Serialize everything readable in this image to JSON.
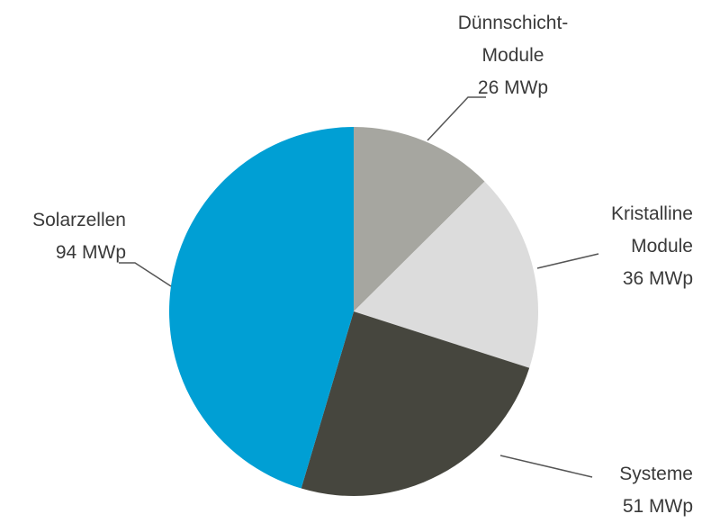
{
  "chart_data": {
    "type": "pie",
    "categories": [
      "Dünnschicht-Module",
      "Kristalline Module",
      "Systeme",
      "Solarzellen"
    ],
    "values": [
      26,
      36,
      51,
      94
    ],
    "value_labels": [
      "26 MWp",
      "36 MWp",
      "51 MWp",
      "94 MWp"
    ],
    "colors": [
      "#a6a6a0",
      "#dcdcdc",
      "#46463e",
      "#009fd4"
    ]
  }
}
